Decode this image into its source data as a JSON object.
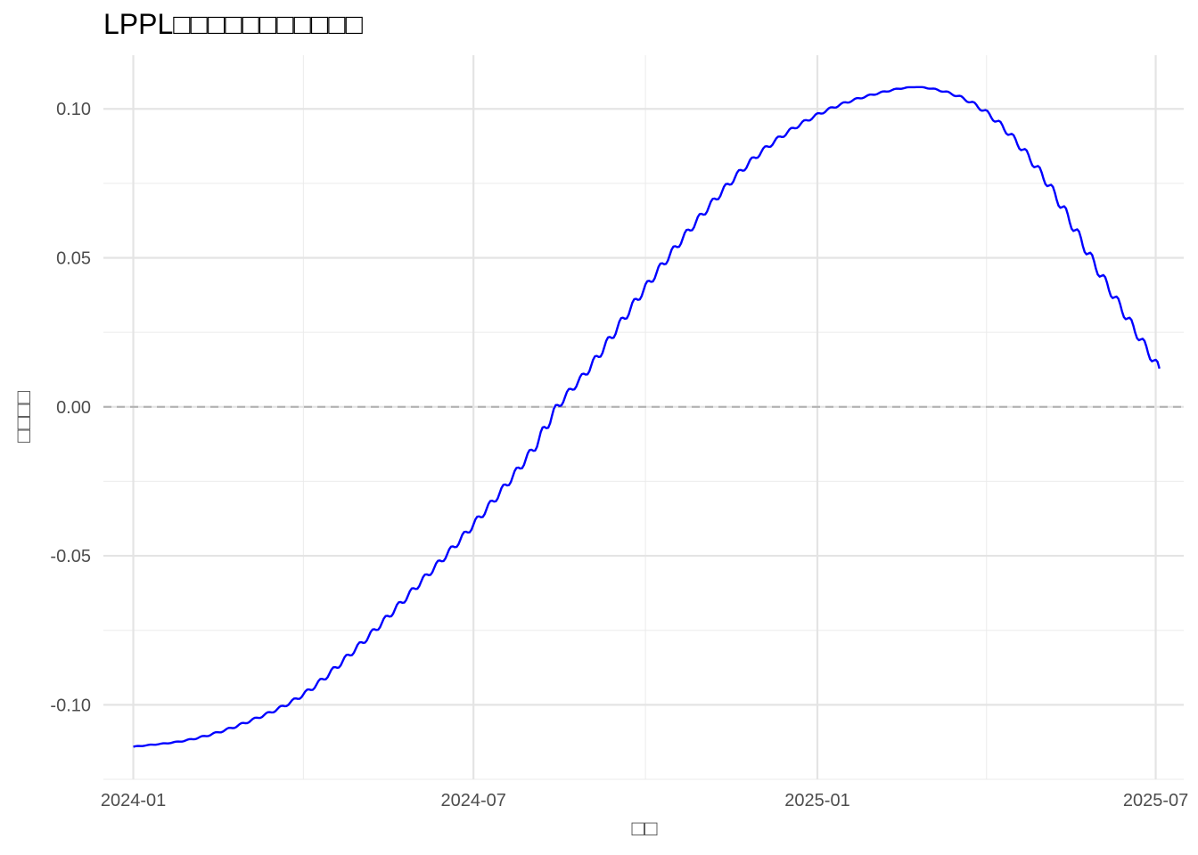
{
  "chart_data": {
    "type": "line",
    "title": "LPPL□□□□□□□□□□□",
    "xlabel": "□□",
    "ylabel": "□□□□",
    "xlim": [
      "2023-12-16",
      "2025-07-16"
    ],
    "ylim": [
      -0.125,
      0.118
    ],
    "x_ticks": [
      "2024-01-01",
      "2024-07-01",
      "2025-01-01",
      "2025-07-01"
    ],
    "x_tick_labels": [
      "2024-01",
      "2024-07",
      "2025-01",
      "2025-07"
    ],
    "y_ticks": [
      -0.1,
      -0.05,
      0.0,
      0.05,
      0.1
    ],
    "y_tick_labels": [
      "-0.10",
      "-0.05",
      "0.00",
      "0.05",
      "0.10"
    ],
    "reference_line": {
      "y": 0,
      "style": "dashed",
      "color": "#b3b3b3"
    },
    "grid": true,
    "background": "#ffffff",
    "series": [
      {
        "color": "#0000ff",
        "style": "line",
        "points": [
          {
            "x": "2024-01-01",
            "y": -0.1141
          },
          {
            "x": "2024-02-01",
            "y": -0.1116
          },
          {
            "x": "2024-03-01",
            "y": -0.106
          },
          {
            "x": "2024-04-01",
            "y": -0.0965
          },
          {
            "x": "2024-05-01",
            "y": -0.08
          },
          {
            "x": "2024-06-01",
            "y": -0.06
          },
          {
            "x": "2024-07-01",
            "y": -0.0395
          },
          {
            "x": "2024-08-01",
            "y": -0.015
          },
          {
            "x": "2024-08-15",
            "y": 0.0
          },
          {
            "x": "2024-09-01",
            "y": 0.013
          },
          {
            "x": "2024-10-01",
            "y": 0.04
          },
          {
            "x": "2024-11-01",
            "y": 0.065
          },
          {
            "x": "2024-12-01",
            "y": 0.085
          },
          {
            "x": "2025-01-01",
            "y": 0.098
          },
          {
            "x": "2025-02-01",
            "y": 0.105
          },
          {
            "x": "2025-03-01",
            "y": 0.107
          },
          {
            "x": "2025-04-01",
            "y": 0.099
          },
          {
            "x": "2025-05-01",
            "y": 0.078
          },
          {
            "x": "2025-06-01",
            "y": 0.045
          },
          {
            "x": "2025-07-03",
            "y": 0.0125
          }
        ]
      }
    ]
  }
}
